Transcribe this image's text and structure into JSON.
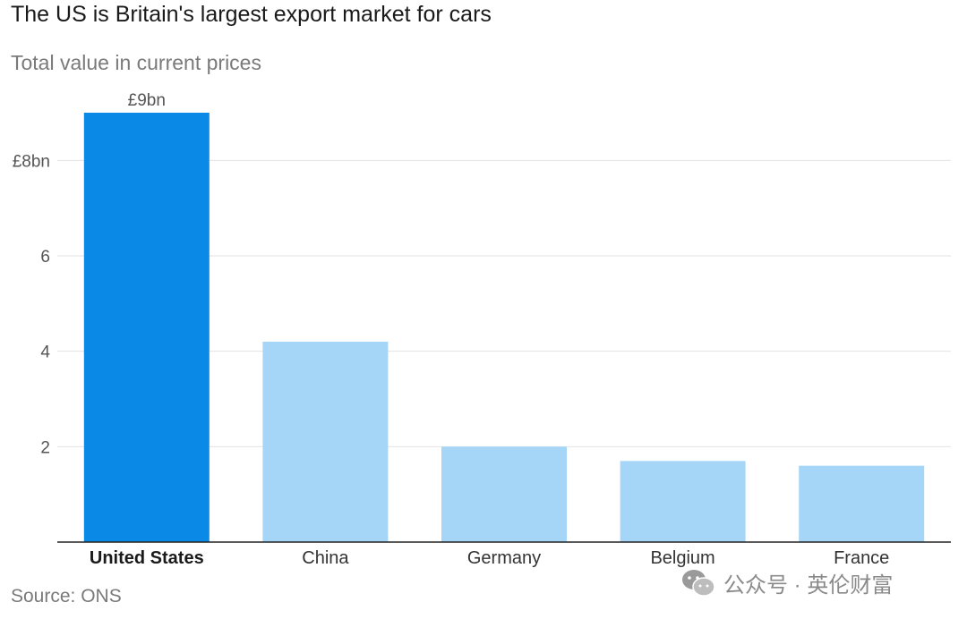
{
  "chart_data": {
    "type": "bar",
    "title": "The US is Britain's largest export market for cars",
    "subtitle": "Total value in current prices",
    "categories": [
      "United States",
      "China",
      "Germany",
      "Belgium",
      "France"
    ],
    "values": [
      9.0,
      4.2,
      2.0,
      1.7,
      1.6
    ],
    "highlight_index": 0,
    "data_labels": [
      "£9bn",
      "",
      "",
      "",
      ""
    ],
    "y_ticks": [
      2,
      4,
      6,
      8
    ],
    "y_tick_labels": [
      "2",
      "4",
      "6",
      "£8bn"
    ],
    "ylim": [
      0,
      9
    ],
    "grid": true,
    "colors": {
      "highlight": "#0a8ae6",
      "default": "#a6d6f7",
      "grid": "#e2e2e2",
      "axis": "#222222"
    },
    "source": "Source: ONS"
  },
  "watermark": {
    "icon": "wechat-icon",
    "text": "公众号 · 英伦财富"
  }
}
